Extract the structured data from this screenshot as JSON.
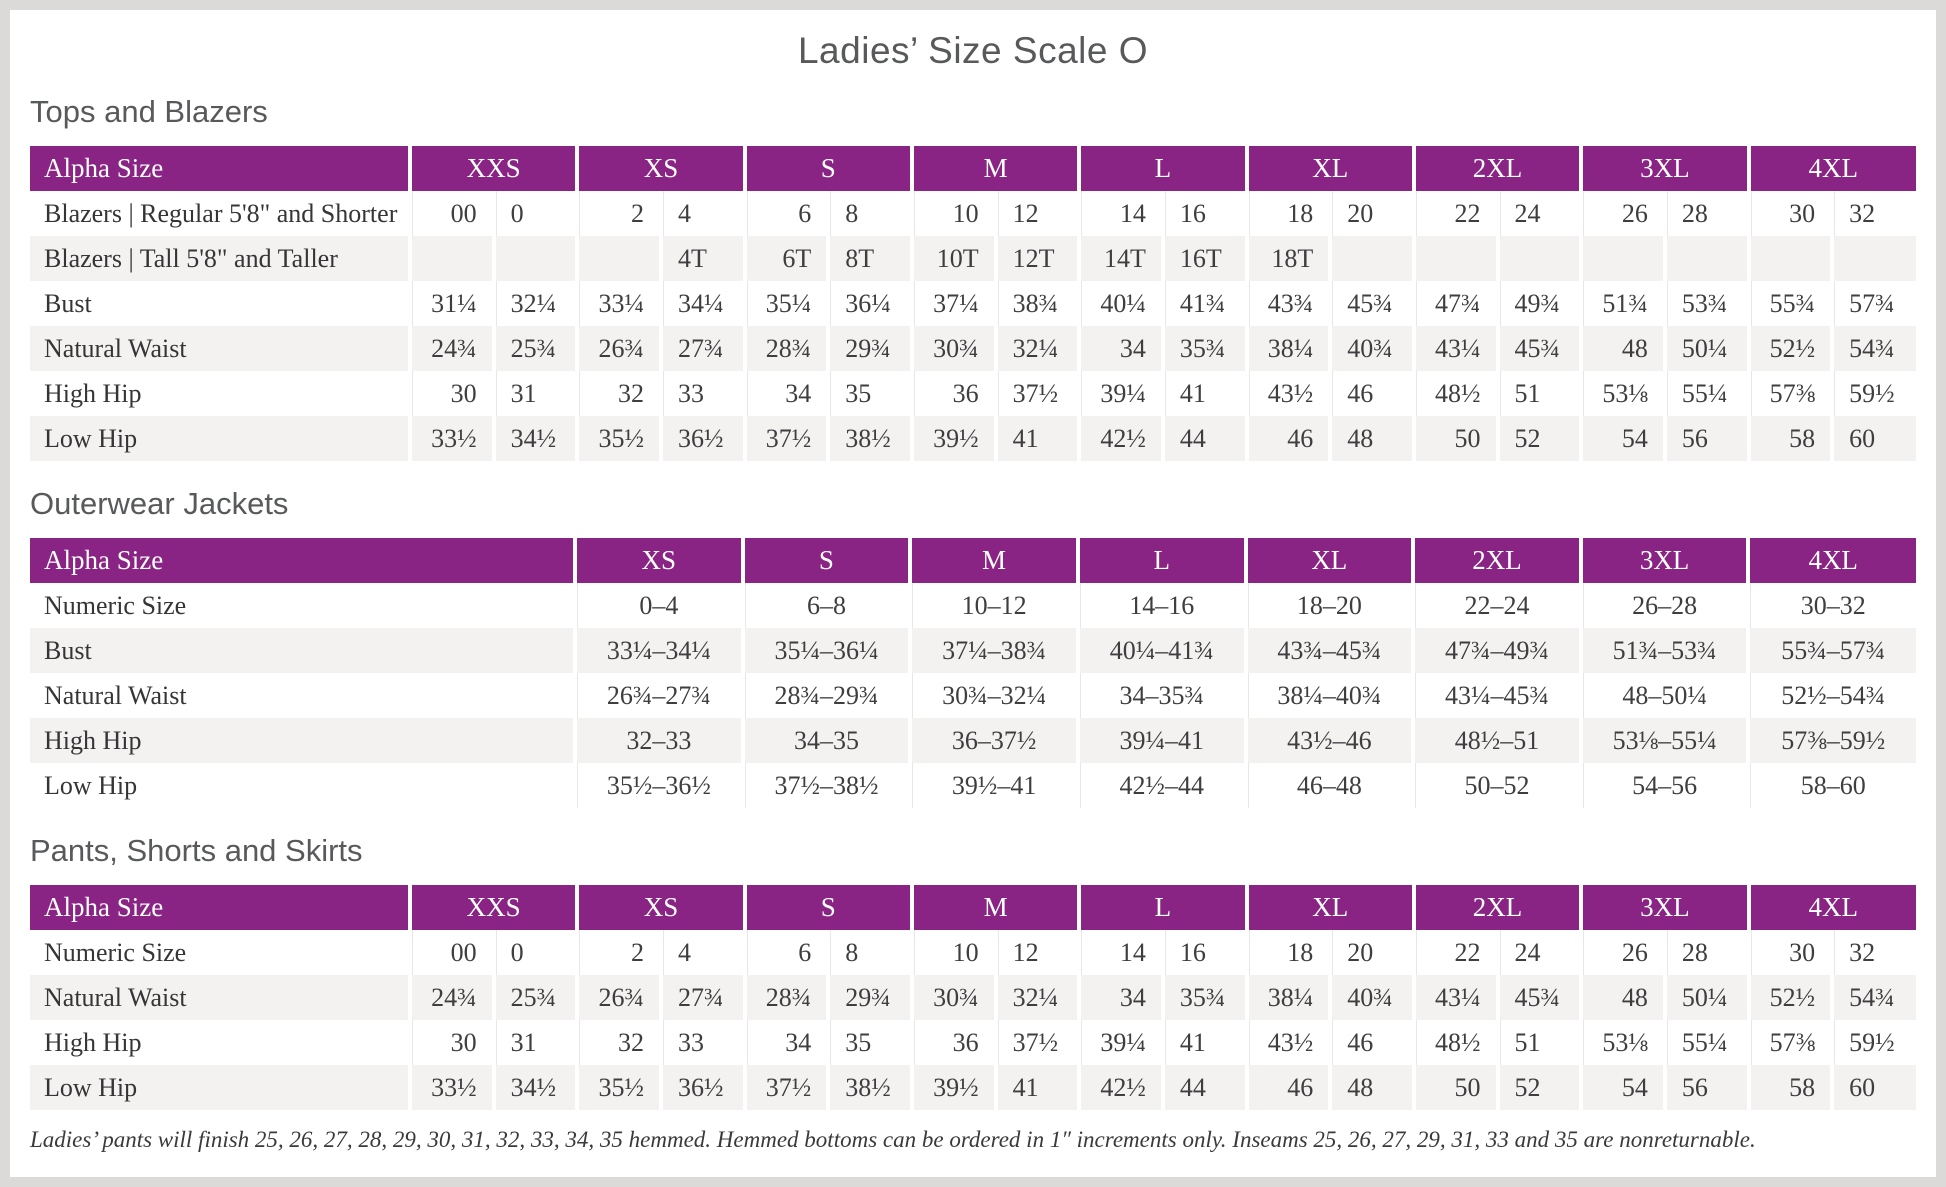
{
  "page": {
    "title": "Ladies’ Size Scale O",
    "footnote": "Ladies’ pants will finish 25, 26, 27, 28, 29, 30, 31, 32, 33, 34, 35 hemmed. Hemmed bottoms can be ordered in 1″ increments only. Inseams 25, 26, 27, 29, 31, 33 and 35 are nonreturnable."
  },
  "colors": {
    "header_bg": "#8A2484",
    "header_text": "#FFFFFF",
    "stripe_bg": "#F4F2F0",
    "page_bg": "#FFFFFF",
    "frame": "#DCDAD8",
    "heading_text": "#58595B",
    "body_text": "#3E3E40"
  },
  "sections": [
    {
      "heading": "Tops and Blazers",
      "layout": "paired",
      "label_header": "Alpha Size",
      "sizes": [
        "XXS",
        "XS",
        "S",
        "M",
        "L",
        "XL",
        "2XL",
        "3XL",
        "4XL"
      ],
      "rows": [
        {
          "label": "Blazers | Regular 5'8\" and Shorter",
          "values": [
            "00",
            "0",
            "2",
            "4",
            "6",
            "8",
            "10",
            "12",
            "14",
            "16",
            "18",
            "20",
            "22",
            "24",
            "26",
            "28",
            "30",
            "32"
          ]
        },
        {
          "label": "Blazers | Tall 5'8\" and Taller",
          "values": [
            "",
            "",
            "",
            "4T",
            "6T",
            "8T",
            "10T",
            "12T",
            "14T",
            "16T",
            "18T",
            "",
            "",
            "",
            "",
            "",
            "",
            ""
          ]
        },
        {
          "label": "Bust",
          "values": [
            "31¼",
            "32¼",
            "33¼",
            "34¼",
            "35¼",
            "36¼",
            "37¼",
            "38¾",
            "40¼",
            "41¾",
            "43¾",
            "45¾",
            "47¾",
            "49¾",
            "51¾",
            "53¾",
            "55¾",
            "57¾"
          ]
        },
        {
          "label": "Natural Waist",
          "values": [
            "24¾",
            "25¾",
            "26¾",
            "27¾",
            "28¾",
            "29¾",
            "30¾",
            "32¼",
            "34",
            "35¾",
            "38¼",
            "40¾",
            "43¼",
            "45¾",
            "48",
            "50¼",
            "52½",
            "54¾"
          ]
        },
        {
          "label": "High Hip",
          "values": [
            "30",
            "31",
            "32",
            "33",
            "34",
            "35",
            "36",
            "37½",
            "39¼",
            "41",
            "43½",
            "46",
            "48½",
            "51",
            "53⅛",
            "55¼",
            "57⅜",
            "59½"
          ]
        },
        {
          "label": "Low Hip",
          "values": [
            "33½",
            "34½",
            "35½",
            "36½",
            "37½",
            "38½",
            "39½",
            "41",
            "42½",
            "44",
            "46",
            "48",
            "50",
            "52",
            "54",
            "56",
            "58",
            "60"
          ]
        }
      ]
    },
    {
      "heading": "Outerwear Jackets",
      "layout": "single",
      "label_header": "Alpha Size",
      "sizes": [
        "XS",
        "S",
        "M",
        "L",
        "XL",
        "2XL",
        "3XL",
        "4XL"
      ],
      "rows": [
        {
          "label": "Numeric Size",
          "values": [
            "0–4",
            "6–8",
            "10–12",
            "14–16",
            "18–20",
            "22–24",
            "26–28",
            "30–32"
          ]
        },
        {
          "label": "Bust",
          "values": [
            "33¼–34¼",
            "35¼–36¼",
            "37¼–38¾",
            "40¼–41¾",
            "43¾–45¾",
            "47¾–49¾",
            "51¾–53¾",
            "55¾–57¾"
          ]
        },
        {
          "label": "Natural Waist",
          "values": [
            "26¾–27¾",
            "28¾–29¾",
            "30¾–32¼",
            "34–35¾",
            "38¼–40¾",
            "43¼–45¾",
            "48–50¼",
            "52½–54¾"
          ]
        },
        {
          "label": "High Hip",
          "values": [
            "32–33",
            "34–35",
            "36–37½",
            "39¼–41",
            "43½–46",
            "48½–51",
            "53⅛–55¼",
            "57⅜–59½"
          ]
        },
        {
          "label": "Low Hip",
          "values": [
            "35½–36½",
            "37½–38½",
            "39½–41",
            "42½–44",
            "46–48",
            "50–52",
            "54–56",
            "58–60"
          ]
        }
      ]
    },
    {
      "heading": "Pants, Shorts and Skirts",
      "layout": "paired",
      "label_header": "Alpha Size",
      "sizes": [
        "XXS",
        "XS",
        "S",
        "M",
        "L",
        "XL",
        "2XL",
        "3XL",
        "4XL"
      ],
      "rows": [
        {
          "label": "Numeric Size",
          "values": [
            "00",
            "0",
            "2",
            "4",
            "6",
            "8",
            "10",
            "12",
            "14",
            "16",
            "18",
            "20",
            "22",
            "24",
            "26",
            "28",
            "30",
            "32"
          ]
        },
        {
          "label": "Natural Waist",
          "values": [
            "24¾",
            "25¾",
            "26¾",
            "27¾",
            "28¾",
            "29¾",
            "30¾",
            "32¼",
            "34",
            "35¾",
            "38¼",
            "40¾",
            "43¼",
            "45¾",
            "48",
            "50¼",
            "52½",
            "54¾"
          ]
        },
        {
          "label": "High Hip",
          "values": [
            "30",
            "31",
            "32",
            "33",
            "34",
            "35",
            "36",
            "37½",
            "39¼",
            "41",
            "43½",
            "46",
            "48½",
            "51",
            "53⅛",
            "55¼",
            "57⅜",
            "59½"
          ]
        },
        {
          "label": "Low Hip",
          "values": [
            "33½",
            "34½",
            "35½",
            "36½",
            "37½",
            "38½",
            "39½",
            "41",
            "42½",
            "44",
            "46",
            "48",
            "50",
            "52",
            "54",
            "56",
            "58",
            "60"
          ]
        }
      ]
    }
  ]
}
